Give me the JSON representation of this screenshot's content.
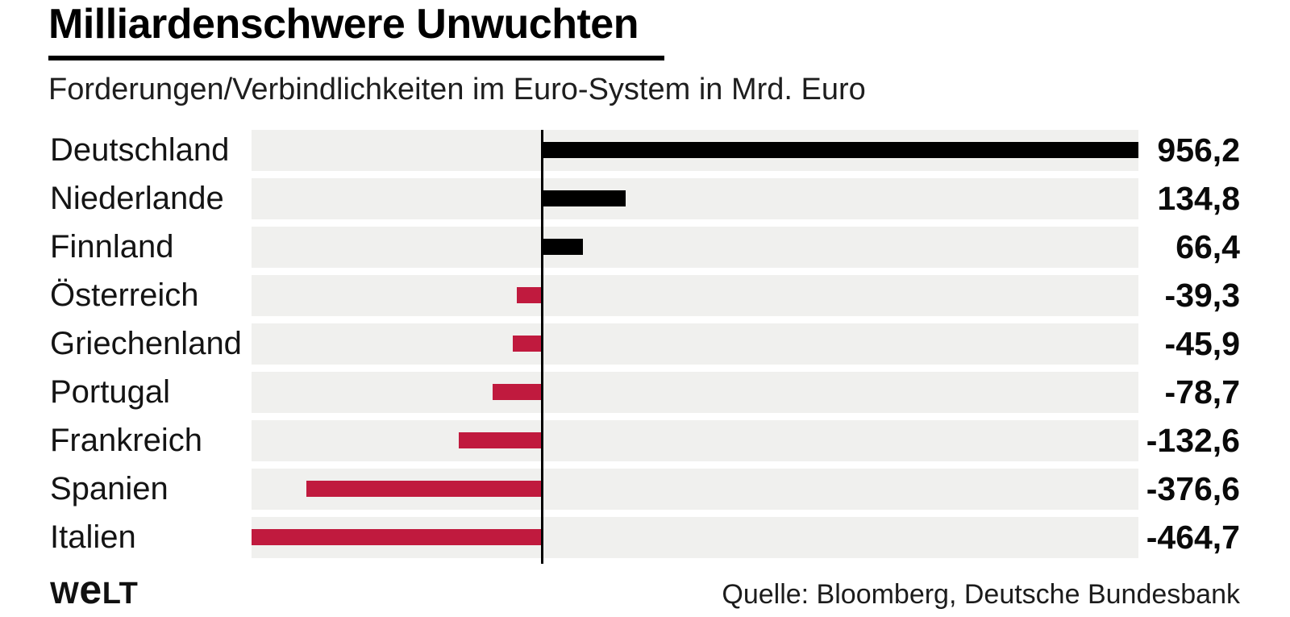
{
  "title": "Milliardenschwere Unwuchten",
  "subtitle": "Forderungen/Verbindlichkeiten im Euro-System in Mrd. Euro",
  "source": "Quelle: Bloomberg, Deutsche Bundesbank",
  "logo": {
    "part1": "W",
    "part2": "e",
    "part3": "LT"
  },
  "colors": {
    "positive": "#000000",
    "negative": "#c01a3e",
    "band": "#f0f0ee",
    "axis": "#000000",
    "text": "#141414"
  },
  "chart_data": {
    "type": "bar",
    "orientation": "horizontal-diverging",
    "title": "Milliardenschwere Unwuchten",
    "subtitle": "Forderungen/Verbindlichkeiten im Euro-System in Mrd. Euro",
    "unit": "Mrd. Euro",
    "categories": [
      "Deutschland",
      "Niederlande",
      "Finnland",
      "Österreich",
      "Griechenland",
      "Portugal",
      "Frankreich",
      "Spanien",
      "Italien"
    ],
    "values": [
      956.2,
      134.8,
      66.4,
      -39.3,
      -45.9,
      -78.7,
      -132.6,
      -376.6,
      -464.7
    ],
    "value_labels": [
      "956,2",
      "134,8",
      "66,4",
      "-39,3",
      "-45,9",
      "-78,7",
      "-132,6",
      "-376,6",
      "-464,7"
    ],
    "xlim": [
      -464.7,
      956.2
    ],
    "positive_color": "#000000",
    "negative_color": "#c01a3e",
    "grid": false,
    "legend": false,
    "source": "Quelle: Bloomberg, Deutsche Bundesbank"
  }
}
